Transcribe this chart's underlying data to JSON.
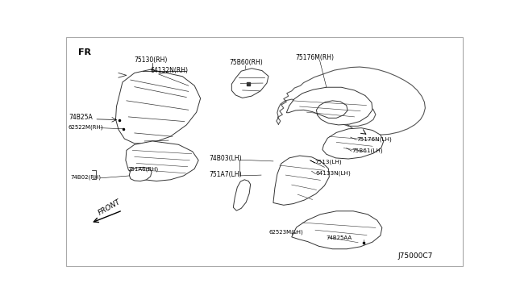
{
  "bg_color": "#ffffff",
  "drawing_color": "#333333",
  "text_color": "#000000",
  "diagram_id": "J75000C7",
  "fr_label": "FR",
  "front_label": "FRONT"
}
